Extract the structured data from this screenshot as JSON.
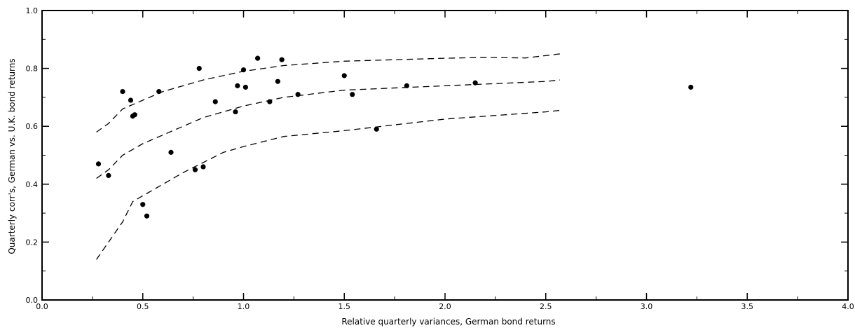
{
  "chart_data": {
    "type": "scatter",
    "xlabel": "Relative quarterly variances, German bond returns",
    "ylabel": "Quarterly corr's, German vs. U.K. bond returns",
    "xlim": [
      0.0,
      4.0
    ],
    "ylim": [
      0.0,
      1.0
    ],
    "x_ticks": [
      "0.0",
      "0.5",
      "1.0",
      "1.5",
      "2.0",
      "2.5",
      "3.0",
      "3.5",
      "4.0"
    ],
    "y_ticks": [
      "0.0",
      "0.2",
      "0.4",
      "0.6",
      "0.8",
      "1.0"
    ],
    "grid": false,
    "series": [
      {
        "kind": "scatter",
        "marker": "filled-circle",
        "color": "#000000",
        "points": [
          [
            0.28,
            0.47
          ],
          [
            0.33,
            0.43
          ],
          [
            0.4,
            0.72
          ],
          [
            0.44,
            0.69
          ],
          [
            0.45,
            0.635
          ],
          [
            0.46,
            0.64
          ],
          [
            0.5,
            0.33
          ],
          [
            0.52,
            0.29
          ],
          [
            0.58,
            0.72
          ],
          [
            0.64,
            0.51
          ],
          [
            0.76,
            0.45
          ],
          [
            0.78,
            0.8
          ],
          [
            0.8,
            0.46
          ],
          [
            0.86,
            0.685
          ],
          [
            0.96,
            0.65
          ],
          [
            0.97,
            0.74
          ],
          [
            1.0,
            0.795
          ],
          [
            1.01,
            0.735
          ],
          [
            1.07,
            0.835
          ],
          [
            1.13,
            0.685
          ],
          [
            1.17,
            0.755
          ],
          [
            1.19,
            0.83
          ],
          [
            1.27,
            0.71
          ],
          [
            1.5,
            0.775
          ],
          [
            1.54,
            0.71
          ],
          [
            1.66,
            0.59
          ],
          [
            1.81,
            0.74
          ],
          [
            2.15,
            0.75
          ],
          [
            3.22,
            0.735
          ]
        ]
      },
      {
        "kind": "line",
        "style": "dashed",
        "color": "#000000",
        "points": [
          [
            0.27,
            0.58
          ],
          [
            0.33,
            0.61
          ],
          [
            0.4,
            0.66
          ],
          [
            0.5,
            0.69
          ],
          [
            0.6,
            0.72
          ],
          [
            0.8,
            0.76
          ],
          [
            1.0,
            0.79
          ],
          [
            1.2,
            0.81
          ],
          [
            1.5,
            0.825
          ],
          [
            2.0,
            0.835
          ],
          [
            2.2,
            0.838
          ],
          [
            2.4,
            0.836
          ],
          [
            2.57,
            0.85
          ]
        ]
      },
      {
        "kind": "line",
        "style": "dashed",
        "color": "#000000",
        "points": [
          [
            0.27,
            0.42
          ],
          [
            0.33,
            0.45
          ],
          [
            0.4,
            0.5
          ],
          [
            0.5,
            0.54
          ],
          [
            0.6,
            0.57
          ],
          [
            0.8,
            0.63
          ],
          [
            1.0,
            0.67
          ],
          [
            1.2,
            0.7
          ],
          [
            1.5,
            0.725
          ],
          [
            2.0,
            0.74
          ],
          [
            2.5,
            0.755
          ],
          [
            2.57,
            0.76
          ]
        ]
      },
      {
        "kind": "line",
        "style": "dashed",
        "color": "#000000",
        "points": [
          [
            0.27,
            0.14
          ],
          [
            0.33,
            0.2
          ],
          [
            0.4,
            0.27
          ],
          [
            0.45,
            0.34
          ],
          [
            0.55,
            0.38
          ],
          [
            0.7,
            0.44
          ],
          [
            0.9,
            0.51
          ],
          [
            1.0,
            0.53
          ],
          [
            1.2,
            0.565
          ],
          [
            1.5,
            0.585
          ],
          [
            2.0,
            0.625
          ],
          [
            2.5,
            0.65
          ],
          [
            2.57,
            0.655
          ]
        ]
      }
    ]
  }
}
